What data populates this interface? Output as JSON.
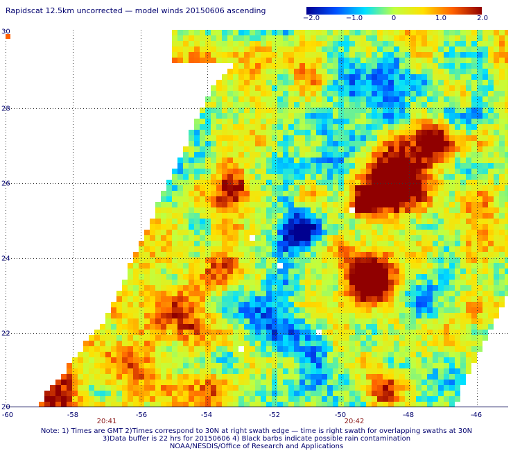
{
  "title": "Rapidscat 12.5km uncorrected — model winds 20150606 ascending",
  "colorbar": {
    "ticks": [
      "−2.0",
      "−1.0",
      "0",
      "1.0",
      "2.0"
    ],
    "min": -2.0,
    "max": 2.0,
    "colors": [
      "#000090",
      "#0050ff",
      "#00e0ff",
      "#c0ff40",
      "#ffe000",
      "#ff6000",
      "#900000"
    ]
  },
  "axes": {
    "x_ticks": [
      "-60",
      "-58",
      "-56",
      "-54",
      "-52",
      "-50",
      "-48",
      "-46"
    ],
    "y_ticks": [
      "20",
      "22",
      "24",
      "26",
      "28",
      "30"
    ],
    "lon_range": [
      -60,
      -45
    ],
    "lat_range": [
      20,
      30
    ]
  },
  "times": {
    "left": "20:41",
    "right": "20:42"
  },
  "notes": {
    "line1": "Note: 1) Times are GMT 2)Times correspond to 30N at right swath edge — time is right swath for overlapping swaths at 30N",
    "line2": "3)Data buffer is 22 hrs for 20150606 4) Black barbs indicate possible rain contamination",
    "line3": "NOAA/NESDIS/Office of Research and Applications"
  }
}
